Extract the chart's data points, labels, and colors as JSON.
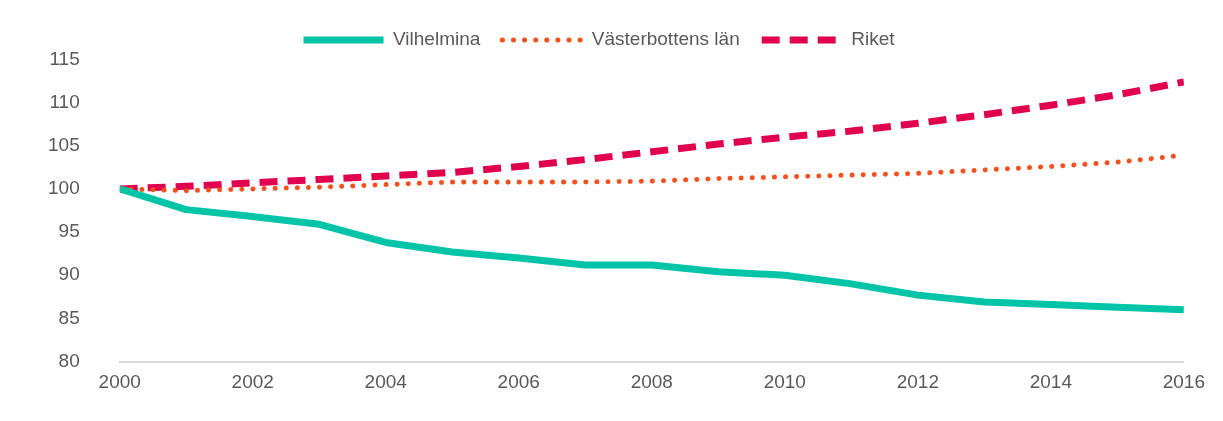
{
  "chart_data": {
    "type": "line",
    "x": [
      2000,
      2001,
      2002,
      2003,
      2004,
      2005,
      2006,
      2007,
      2008,
      2009,
      2010,
      2011,
      2012,
      2013,
      2014,
      2015,
      2016
    ],
    "xlim": [
      2000,
      2016
    ],
    "xticks": [
      2000,
      2002,
      2004,
      2006,
      2008,
      2010,
      2012,
      2014,
      2016
    ],
    "ylim": [
      80,
      115
    ],
    "yticks": [
      80,
      85,
      90,
      95,
      100,
      105,
      110,
      115
    ],
    "grid": false,
    "legend": "top",
    "marker": "none",
    "series": [
      {
        "name": "Vilhelmina",
        "color": "#00c4a7",
        "line_style": "solid",
        "values": [
          100,
          97.6,
          96.8,
          95.9,
          93.8,
          92.7,
          92.0,
          91.2,
          91.2,
          90.4,
          90.0,
          89.0,
          87.7,
          86.9,
          86.6,
          86.3,
          86.0
        ]
      },
      {
        "name": "Västerbottens län",
        "color": "#f4511e",
        "line_style": "dotted",
        "values": [
          100,
          99.8,
          100.0,
          100.2,
          100.5,
          100.8,
          100.8,
          100.8,
          100.9,
          101.2,
          101.4,
          101.6,
          101.8,
          102.2,
          102.6,
          103.1,
          103.9
        ]
      },
      {
        "name": "Riket",
        "color": "#e0004d",
        "line_style": "dashed",
        "values": [
          100,
          100.3,
          100.7,
          101.1,
          101.5,
          101.9,
          102.6,
          103.4,
          104.3,
          105.2,
          106.0,
          106.7,
          107.6,
          108.6,
          109.7,
          110.9,
          112.4
        ]
      }
    ]
  }
}
